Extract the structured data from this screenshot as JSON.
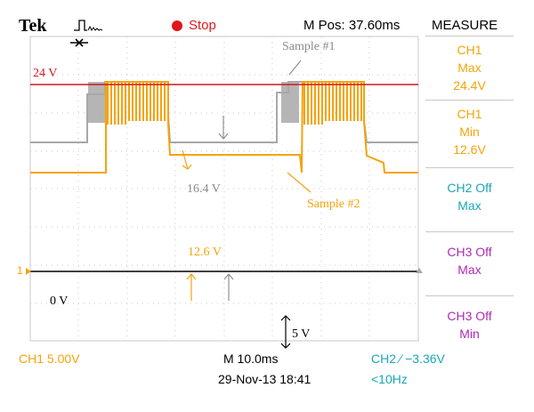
{
  "header": {
    "brand": "Tek",
    "status": "Stop",
    "m_pos": "M Pos: 37.60ms",
    "measure_title": "MEASURE"
  },
  "colors": {
    "ch1": "#f5a30a",
    "ch2": "#a8a8a8",
    "ch2_text": "#1aa6b6",
    "ch3_text": "#b02ab2",
    "ref": "#d4161b",
    "stop": "#e0161b"
  },
  "icons": [
    "trigger-waveform-icon",
    "stop-indicator-icon",
    "trigger-position-icon",
    "ch1-ground-marker-icon",
    "trigger-level-marker-icon"
  ],
  "annotations": {
    "v24": "24 V",
    "sample1": "Sample #1",
    "v16": "16.4 V",
    "sample2": "Sample #2",
    "v12": "12.6 V",
    "v0": "0 V",
    "v5": "5 V",
    "ch1_marker": "1"
  },
  "measurements": [
    {
      "lines": [
        "CH1",
        "Max",
        "24.4V"
      ],
      "color": "ch1"
    },
    {
      "lines": [
        "CH1",
        "Min",
        "12.6V"
      ],
      "color": "ch1"
    },
    {
      "lines": [
        "CH2 Off",
        "Max"
      ],
      "color": "ch2"
    },
    {
      "lines": [
        "CH3 Off",
        "Max"
      ],
      "color": "ch3"
    },
    {
      "lines": [
        "CH3 Off",
        "Min"
      ],
      "color": "ch3"
    }
  ],
  "footer": {
    "ch1_scale": "CH1  5.00V",
    "timebase": "M 10.0ms",
    "trigger": "CH2 ⁄ −3.36V",
    "datetime": "29-Nov-13 18:41",
    "freq": "<10Hz"
  }
}
